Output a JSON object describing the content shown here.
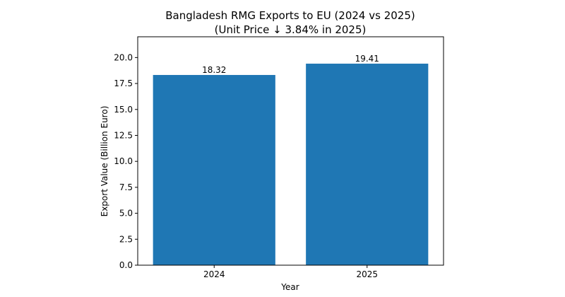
{
  "chart_data": {
    "type": "bar",
    "title": "Bangladesh RMG Exports to EU (2024 vs 2025)",
    "subtitle": "(Unit Price ↓ 3.84% in 2025)",
    "xlabel": "Year",
    "ylabel": "Export Value (Billion Euro)",
    "categories": [
      "2024",
      "2025"
    ],
    "values": [
      18.32,
      19.41
    ],
    "value_labels": [
      "18.32",
      "19.41"
    ],
    "ylim": [
      0,
      22
    ],
    "yticks": [
      0.0,
      2.5,
      5.0,
      7.5,
      10.0,
      12.5,
      15.0,
      17.5,
      20.0
    ],
    "ytick_labels": [
      "0.0",
      "2.5",
      "5.0",
      "7.5",
      "10.0",
      "12.5",
      "15.0",
      "17.5",
      "20.0"
    ],
    "grid": false,
    "bar_color": "#1f77b4"
  }
}
